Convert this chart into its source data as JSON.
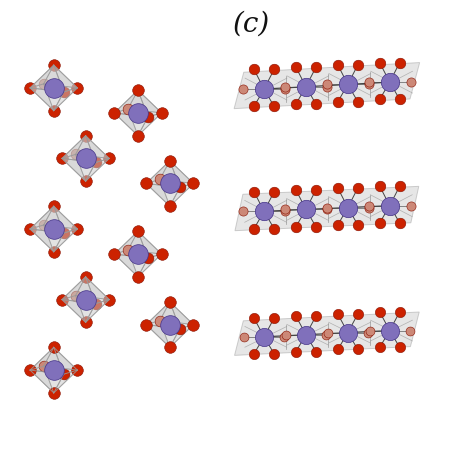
{
  "title": "(c)",
  "title_fontsize": 20,
  "title_style": "italic",
  "bg_color": "#ffffff",
  "mn_color": "#8070bb",
  "mn_color2": "#9988cc",
  "o_color": "#cc2200",
  "o_color_faded": "#cc8877",
  "bond_color": "#444444",
  "octa_face_color": "#c8c8c8",
  "octa_face_alpha": 0.5,
  "octa_edge_color": "#999999",
  "figsize": [
    4.58,
    4.58
  ],
  "dpi": 100
}
